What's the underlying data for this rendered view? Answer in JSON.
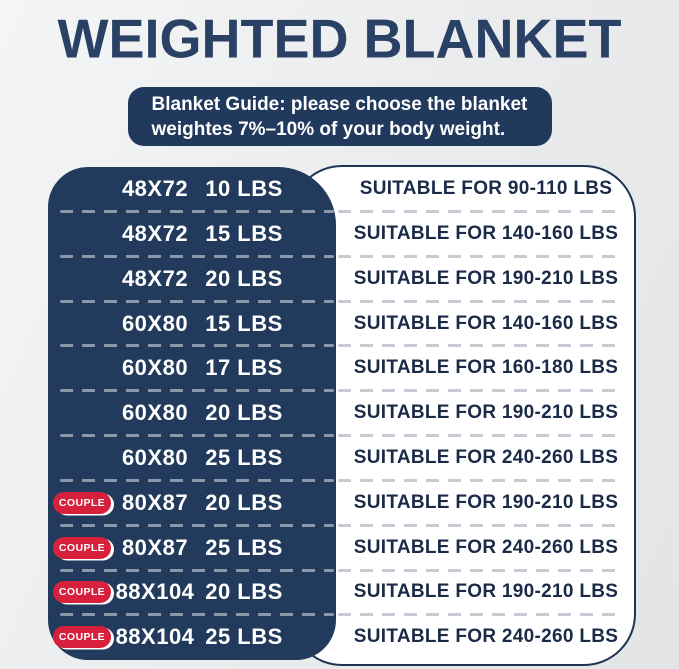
{
  "header": {
    "title": "WEIGHTED BLANKET",
    "banner_line1": "Blanket Guide: please choose the blanket",
    "banner_line2": "weightes 7%–10% of your body weight."
  },
  "table": {
    "couple_label": "COUPLE",
    "rows": [
      {
        "couple": false,
        "size": "48X72",
        "weight": "10 LBS",
        "suitable": "SUITABLE FOR 90-110 LBS"
      },
      {
        "couple": false,
        "size": "48X72",
        "weight": "15 LBS",
        "suitable": "SUITABLE FOR 140-160 LBS"
      },
      {
        "couple": false,
        "size": "48X72",
        "weight": "20 LBS",
        "suitable": "SUITABLE FOR 190-210 LBS"
      },
      {
        "couple": false,
        "size": "60X80",
        "weight": "15 LBS",
        "suitable": "SUITABLE FOR 140-160 LBS"
      },
      {
        "couple": false,
        "size": "60X80",
        "weight": "17 LBS",
        "suitable": "SUITABLE FOR 160-180 LBS"
      },
      {
        "couple": false,
        "size": "60X80",
        "weight": "20 LBS",
        "suitable": "SUITABLE FOR 190-210 LBS"
      },
      {
        "couple": false,
        "size": "60X80",
        "weight": "25 LBS",
        "suitable": "SUITABLE FOR 240-260 LBS"
      },
      {
        "couple": true,
        "size": "80X87",
        "weight": "20 LBS",
        "suitable": "SUITABLE FOR 190-210 LBS"
      },
      {
        "couple": true,
        "size": "80X87",
        "weight": "25 LBS",
        "suitable": "SUITABLE FOR 240-260 LBS"
      },
      {
        "couple": true,
        "size": "88X104",
        "weight": "20 LBS",
        "suitable": "SUITABLE FOR 190-210 LBS"
      },
      {
        "couple": true,
        "size": "88X104",
        "weight": "25 LBS",
        "suitable": "SUITABLE FOR 240-260 LBS"
      }
    ]
  },
  "colors": {
    "navy": "#223a5b",
    "title_navy": "#2a4166",
    "badge_red": "#d7203b",
    "text_dark": "#1b2a47",
    "dash_on_navy": "#8d97aa",
    "dash_on_white": "#c7ccd4",
    "background": "#ebedee"
  },
  "chart_data": {
    "type": "table",
    "title": "WEIGHTED BLANKET",
    "subtitle": "Blanket Guide: please choose the blanket weightes 7%–10% of your body weight.",
    "columns": [
      "couple",
      "size_inches",
      "blanket_weight",
      "suitable_for_body_weight"
    ],
    "rows": [
      [
        "",
        "48X72",
        "10 LBS",
        "90-110 LBS"
      ],
      [
        "",
        "48X72",
        "15 LBS",
        "140-160 LBS"
      ],
      [
        "",
        "48X72",
        "20 LBS",
        "190-210 LBS"
      ],
      [
        "",
        "60X80",
        "15 LBS",
        "140-160 LBS"
      ],
      [
        "",
        "60X80",
        "17 LBS",
        "160-180 LBS"
      ],
      [
        "",
        "60X80",
        "20 LBS",
        "190-210 LBS"
      ],
      [
        "",
        "60X80",
        "25 LBS",
        "240-260 LBS"
      ],
      [
        "COUPLE",
        "80X87",
        "20 LBS",
        "190-210 LBS"
      ],
      [
        "COUPLE",
        "80X87",
        "25 LBS",
        "240-260 LBS"
      ],
      [
        "COUPLE",
        "88X104",
        "20 LBS",
        "190-210 LBS"
      ],
      [
        "COUPLE",
        "88X104",
        "25 LBS",
        "240-260 LBS"
      ]
    ]
  }
}
